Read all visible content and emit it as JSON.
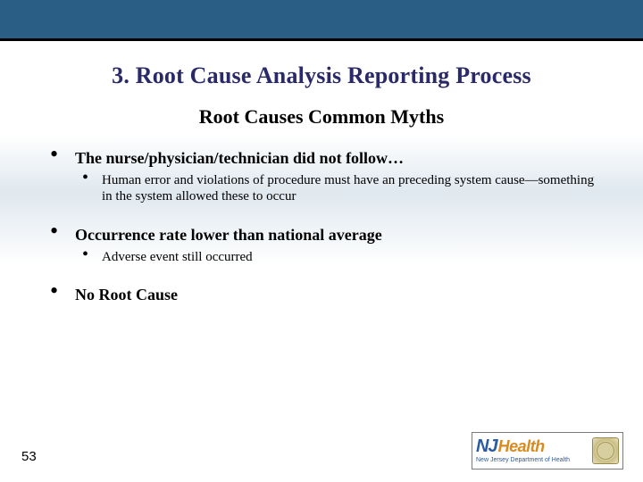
{
  "colors": {
    "topbar_bg": "#2a5e84",
    "topbar_border": "#000000",
    "title_color": "#2a2a6a",
    "text_color": "#000000",
    "logo_nj_color": "#2a5aa0",
    "logo_health_color": "#d98a1f",
    "logo_sub_color": "#2a5aa0"
  },
  "title": "3. Root Cause Analysis Reporting Process",
  "subtitle": "Root Causes Common Myths",
  "bullets": [
    {
      "text": "The nurse/physician/technician did not follow…",
      "sub": [
        "Human error and violations of procedure must have an preceding system cause—something in the system allowed these to occur"
      ]
    },
    {
      "text": "Occurrence rate lower than national average",
      "sub": [
        "Adverse event still occurred"
      ]
    },
    {
      "text": "No Root Cause",
      "sub": []
    }
  ],
  "page_number": "53",
  "logo": {
    "nj": "NJ",
    "health": "Health",
    "sub": "New Jersey Department of Health"
  }
}
